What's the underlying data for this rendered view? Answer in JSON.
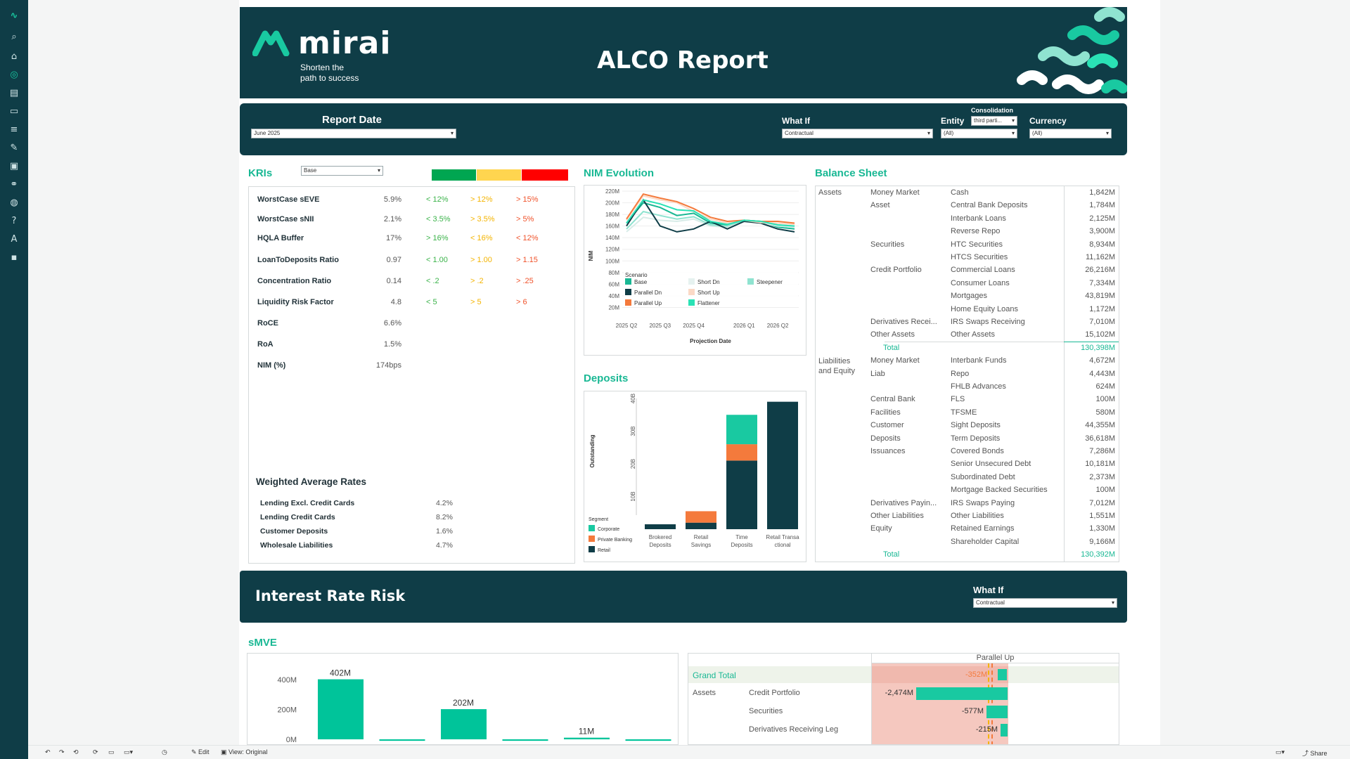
{
  "header": {
    "logo": "mirai",
    "tagline_1": "Shorten the",
    "tagline_2": "path to success",
    "title": "ALCO Report"
  },
  "filters": {
    "report_date_label": "Report Date",
    "report_date_value": "June 2025",
    "what_if_label": "What If",
    "what_if_value": "Contractual",
    "entity_label": "Entity",
    "entity_value": "(All)",
    "consolidation_label": "Consolidation",
    "consolidation_value": "third parti...",
    "currency_label": "Currency",
    "currency_value": "(All)"
  },
  "kris": {
    "title": "KRIs",
    "scenario_value": "Base",
    "colors": {
      "green": "#00a651",
      "yellow": "#ffd54f",
      "red": "#ff0000"
    },
    "rows": [
      {
        "name": "WorstCase sEVE",
        "value": "5.9%",
        "green": "< 12%",
        "yellow": "> 12%",
        "red": "> 15%"
      },
      {
        "name": "WorstCase sNII",
        "value": "2.1%",
        "green": "< 3.5%",
        "yellow": "> 3.5%",
        "red": "> 5%"
      },
      {
        "name": "HQLA Buffer",
        "value": "17%",
        "green": "> 16%",
        "yellow": "< 16%",
        "red": "< 12%"
      },
      {
        "name": "LoanToDeposits Ratio",
        "value": "0.97",
        "green": "< 1.00",
        "yellow": "> 1.00",
        "red": "> 1.15"
      },
      {
        "name": "Concentration Ratio",
        "value": "0.14",
        "green": "< .2",
        "yellow": "> .2",
        "red": "> .25"
      },
      {
        "name": "Liquidity Risk Factor",
        "value": "4.8",
        "green": "< 5",
        "yellow": "> 5",
        "red": "> 6"
      },
      {
        "name": "RoCE",
        "value": "6.6%",
        "green": "",
        "yellow": "",
        "red": ""
      },
      {
        "name": "RoA",
        "value": "1.5%",
        "green": "",
        "yellow": "",
        "red": ""
      },
      {
        "name": "NIM (%)",
        "value": "174bps",
        "green": "",
        "yellow": "",
        "red": ""
      }
    ]
  },
  "war": {
    "title": "Weighted Average Rates",
    "rows": [
      {
        "name": "Lending Excl. Credit Cards",
        "value": "4.2%"
      },
      {
        "name": "Lending Credit Cards",
        "value": "8.2%"
      },
      {
        "name": "Customer Deposits",
        "value": "1.6%"
      },
      {
        "name": "Wholesale Liabilities",
        "value": "4.7%"
      }
    ]
  },
  "nim": {
    "title": "NIM Evolution",
    "ylabel": "NIM",
    "xlabel": "Projection Date",
    "y_ticks": [
      "220M",
      "200M",
      "180M",
      "160M",
      "140M",
      "120M",
      "100M",
      "80M",
      "60M",
      "40M",
      "20M"
    ],
    "x_ticks": [
      "2025 Q2",
      "2025 Q3",
      "2025 Q4",
      "2026 Q1",
      "2026 Q2"
    ],
    "legend_title": "Scenario",
    "legend": [
      {
        "name": "Base",
        "color": "#19b894"
      },
      {
        "name": "Short Dn",
        "color": "#e6f2f0"
      },
      {
        "name": "Steepener",
        "color": "#8fe3d0"
      },
      {
        "name": "Parallel Dn",
        "color": "#0f3d47"
      },
      {
        "name": "Short Up",
        "color": "#fbd9c6"
      },
      {
        "name": "Parallel Up",
        "color": "#f47a3c"
      },
      {
        "name": "Flattener",
        "color": "#2ae2b5"
      }
    ]
  },
  "chart_data": [
    {
      "type": "line",
      "title": "NIM Evolution",
      "xlabel": "Projection Date",
      "ylabel": "NIM",
      "ylim": [
        0,
        220
      ],
      "x": [
        "2025 Q2",
        "",
        "2025 Q3",
        "",
        "2025 Q4",
        "",
        "",
        "2026 Q1",
        "",
        "2026 Q2",
        ""
      ],
      "series": [
        {
          "name": "Base",
          "color": "#19b894",
          "values": [
            165,
            200,
            192,
            178,
            182,
            165,
            162,
            170,
            168,
            158,
            155
          ]
        },
        {
          "name": "Short Dn",
          "color": "#d8ece8",
          "values": [
            150,
            175,
            170,
            168,
            172,
            160,
            158,
            168,
            166,
            160,
            158
          ]
        },
        {
          "name": "Steepener",
          "color": "#8fe3d0",
          "values": [
            155,
            185,
            178,
            172,
            176,
            162,
            160,
            170,
            168,
            162,
            160
          ]
        },
        {
          "name": "Parallel Dn",
          "color": "#0f3d47",
          "values": [
            160,
            205,
            160,
            150,
            155,
            168,
            155,
            168,
            165,
            155,
            150
          ]
        },
        {
          "name": "Short Up",
          "color": "#fbd9c6",
          "values": [
            170,
            212,
            205,
            200,
            185,
            172,
            165,
            170,
            166,
            165,
            163
          ]
        },
        {
          "name": "Parallel Up",
          "color": "#f47a3c",
          "values": [
            172,
            215,
            208,
            202,
            190,
            175,
            168,
            170,
            168,
            168,
            165
          ]
        },
        {
          "name": "Flattener",
          "color": "#2ae2b5",
          "values": [
            165,
            205,
            198,
            188,
            186,
            168,
            163,
            170,
            168,
            162,
            160
          ]
        }
      ]
    },
    {
      "type": "bar",
      "title": "Deposits",
      "ylabel": "Outstanding",
      "categories": [
        "Brokered Deposits",
        "Retail Savings",
        "Time Deposits",
        "Retail Transactional"
      ],
      "ylim": [
        0,
        40
      ],
      "series": [
        {
          "name": "Retail",
          "color": "#0f3d47",
          "values": [
            1.5,
            2,
            21,
            39
          ]
        },
        {
          "name": "Private Banking",
          "color": "#f47a3c",
          "values": [
            0,
            3.5,
            5,
            0
          ]
        },
        {
          "name": "Corporate",
          "color": "#19c9a1",
          "values": [
            0,
            0,
            9,
            0
          ]
        }
      ]
    },
    {
      "type": "bar",
      "title": "sMVE",
      "categories": [
        "",
        "",
        "",
        "",
        "",
        ""
      ],
      "values": [
        402,
        -10,
        202,
        -10,
        11,
        -10
      ],
      "data_labels": [
        "402M",
        "",
        "202M",
        "",
        "11M",
        ""
      ],
      "ylim": [
        -10,
        450
      ],
      "y_ticks": [
        "400M",
        "200M",
        "0M"
      ]
    }
  ],
  "deposits": {
    "title": "Deposits",
    "ylabel": "Outstanding",
    "y_ticks": [
      "40B",
      "30B",
      "20B",
      "10B",
      "0B"
    ],
    "legend_title": "Segment",
    "legend": [
      {
        "name": "Corporate",
        "color": "#19c9a1"
      },
      {
        "name": "Private Banking",
        "color": "#f47a3c"
      },
      {
        "name": "Retail",
        "color": "#0f3d47"
      }
    ],
    "categories": [
      {
        "line1": "Brokered",
        "line2": "Deposits"
      },
      {
        "line1": "Retail",
        "line2": "Savings"
      },
      {
        "line1": "Time",
        "line2": "Deposits"
      },
      {
        "line1": "Retail Transa",
        "line2": "ctional"
      }
    ]
  },
  "balance_sheet": {
    "title": "Balance Sheet",
    "assets_label": "Assets",
    "liab_label_1": "Liabilities",
    "liab_label_2": "and Equity",
    "rows": [
      {
        "group": "Money Market",
        "item": "Cash",
        "value": "1,842M"
      },
      {
        "group": "Asset",
        "item": "Central Bank Deposits",
        "value": "1,784M"
      },
      {
        "group": "",
        "item": "Interbank Loans",
        "value": "2,125M"
      },
      {
        "group": "",
        "item": "Reverse Repo",
        "value": "3,900M"
      },
      {
        "group": "Securities",
        "item": "HTC Securities",
        "value": "8,934M"
      },
      {
        "group": "",
        "item": "HTCS Securities",
        "value": "11,162M"
      },
      {
        "group": "Credit Portfolio",
        "item": "Commercial Loans",
        "value": "26,216M"
      },
      {
        "group": "",
        "item": "Consumer Loans",
        "value": "7,334M"
      },
      {
        "group": "",
        "item": "Mortgages",
        "value": "43,819M"
      },
      {
        "group": "",
        "item": "Home Equity Loans",
        "value": "1,172M"
      },
      {
        "group": "Derivatives Recei...",
        "item": "IRS Swaps Receiving",
        "value": "7,010M"
      },
      {
        "group": "Other Assets",
        "item": "Other Assets",
        "value": "15,102M"
      },
      {
        "group": "Total",
        "item": "",
        "value": "130,398M",
        "total": true
      },
      {
        "group": "Money Market",
        "item": "Interbank Funds",
        "value": "4,672M"
      },
      {
        "group": "Liab",
        "item": "Repo",
        "value": "4,443M"
      },
      {
        "group": "",
        "item": "FHLB Advances",
        "value": "624M"
      },
      {
        "group": "Central Bank",
        "item": "FLS",
        "value": "100M"
      },
      {
        "group": "Facilities",
        "item": "TFSME",
        "value": "580M"
      },
      {
        "group": "Customer",
        "item": "Sight Deposits",
        "value": "44,355M"
      },
      {
        "group": "Deposits",
        "item": "Term Deposits",
        "value": "36,618M"
      },
      {
        "group": "Issuances",
        "item": "Covered Bonds",
        "value": "7,286M"
      },
      {
        "group": "",
        "item": "Senior Unsecured Debt",
        "value": "10,181M"
      },
      {
        "group": "",
        "item": "Subordinated Debt",
        "value": "2,373M"
      },
      {
        "group": "",
        "item": "Mortgage Backed Securities",
        "value": "100M"
      },
      {
        "group": "Derivatives Payin...",
        "item": "IRS Swaps Paying",
        "value": "7,012M"
      },
      {
        "group": "Other Liabilities",
        "item": "Other Liabilities",
        "value": "1,551M"
      },
      {
        "group": "Equity",
        "item": "Retained Earnings",
        "value": "1,330M"
      },
      {
        "group": "",
        "item": "Shareholder Capital",
        "value": "9,166M"
      },
      {
        "group": "Total",
        "item": "",
        "value": "130,392M",
        "total": true
      }
    ]
  },
  "irr": {
    "title": "Interest Rate Risk",
    "what_if_label": "What If",
    "what_if_value": "Contractual",
    "smve_title": "sMVE",
    "table_header": "Parallel Up",
    "grand_total_label": "Grand Total",
    "grand_total_value": "-352M",
    "assets_label": "Assets",
    "rows": [
      {
        "name": "Credit Portfolio",
        "value": "-2,474M"
      },
      {
        "name": "Securities",
        "value": "-577M"
      },
      {
        "name": "Derivatives Receiving Leg",
        "value": "-215M"
      }
    ]
  },
  "toolbar": {
    "edit": "Edit",
    "view": "View: Original",
    "share": "Share"
  }
}
